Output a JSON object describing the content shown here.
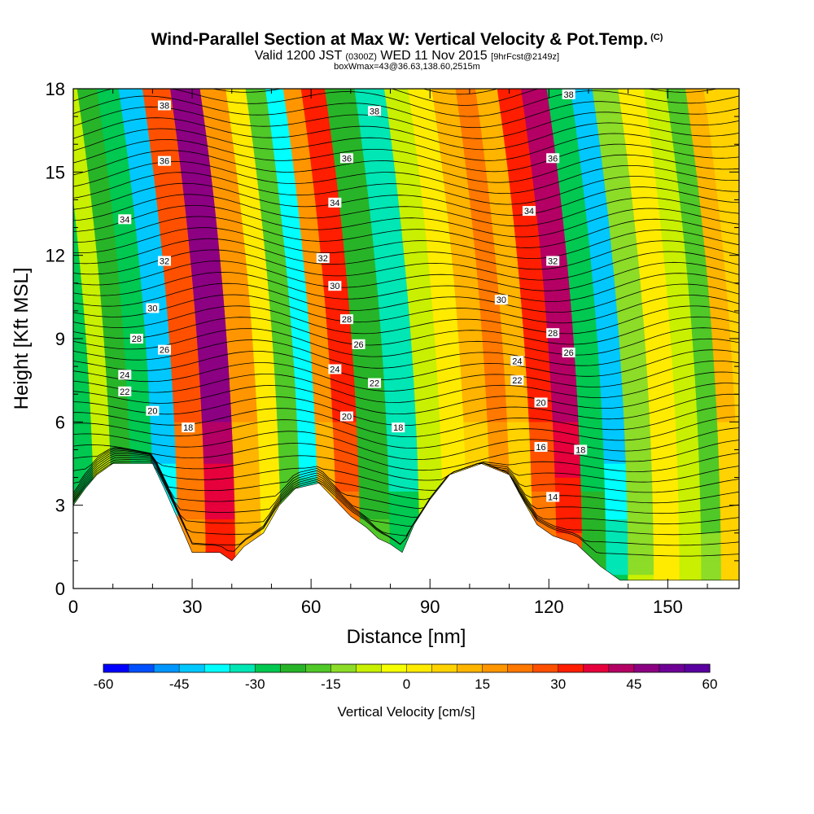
{
  "header": {
    "title": "Wind-Parallel Section at Max W: Vertical Velocity & Pot.Temp.",
    "copyright": "(C)",
    "valid_prefix": "Valid 1200 JST",
    "valid_zulu": "(0300Z)",
    "valid_date": "WED 11 Nov 2015",
    "valid_suffix": "[9hrFcst@2149z]",
    "box_line": "boxWmax=43@36.63,138.60,2515m"
  },
  "chart_data": {
    "type": "heatmap",
    "xlabel": "Distance [nm]",
    "ylabel": "Height [Kft MSL]",
    "xlim": [
      0,
      168
    ],
    "ylim": [
      0,
      18
    ],
    "x_ticks": [
      0,
      30,
      60,
      90,
      120,
      150
    ],
    "y_ticks": [
      0,
      3,
      6,
      9,
      12,
      15,
      18
    ],
    "x_tick_labels": [
      "0",
      "30",
      "60",
      "90",
      "120",
      "150"
    ],
    "y_tick_labels": [
      "0",
      "3",
      "6",
      "9",
      "12",
      "15",
      "18"
    ],
    "colorbar": {
      "label": "Vertical Velocity [cm/s]",
      "tick_values": [
        -60,
        -45,
        -30,
        -15,
        0,
        15,
        30,
        45,
        60
      ],
      "tick_labels": [
        "-60",
        "-45",
        "-30",
        "-15",
        "0",
        "15",
        "30",
        "45",
        "60"
      ],
      "colors": [
        "#0000ff",
        "#0050ff",
        "#0096ff",
        "#00c8ff",
        "#00ffff",
        "#00e6b4",
        "#00c850",
        "#28b428",
        "#50c828",
        "#8cdc28",
        "#c8f000",
        "#f5ff00",
        "#ffeb00",
        "#ffd200",
        "#ffb400",
        "#ff9600",
        "#ff7800",
        "#ff5000",
        "#ff1e00",
        "#e6003c",
        "#b40064",
        "#8c0082",
        "#6e0096",
        "#5a00a0"
      ]
    },
    "vertical_velocity_bands": [
      {
        "x": 3,
        "w": -30
      },
      {
        "x": 8,
        "w": -10
      },
      {
        "x": 12,
        "w": -25
      },
      {
        "x": 18,
        "w": -30
      },
      {
        "x": 23,
        "w": -45
      },
      {
        "x": 30,
        "w": 25
      },
      {
        "x": 37,
        "w": 45
      },
      {
        "x": 45,
        "w": 15
      },
      {
        "x": 50,
        "w": 0
      },
      {
        "x": 55,
        "w": -20
      },
      {
        "x": 60,
        "w": -40
      },
      {
        "x": 64,
        "w": 15
      },
      {
        "x": 69,
        "w": 30
      },
      {
        "x": 76,
        "w": -25
      },
      {
        "x": 84,
        "w": -35
      },
      {
        "x": 91,
        "w": -10
      },
      {
        "x": 96,
        "w": 0
      },
      {
        "x": 103,
        "w": 10
      },
      {
        "x": 108,
        "w": 20
      },
      {
        "x": 113,
        "w": 10
      },
      {
        "x": 119,
        "w": 30
      },
      {
        "x": 125,
        "w": 40
      },
      {
        "x": 132,
        "w": -30
      },
      {
        "x": 137,
        "w": -45
      },
      {
        "x": 143,
        "w": -15
      },
      {
        "x": 150,
        "w": 0
      },
      {
        "x": 156,
        "w": -10
      },
      {
        "x": 161,
        "w": -20
      },
      {
        "x": 166,
        "w": 10
      }
    ],
    "theta_contour_labels": [
      {
        "x": 23,
        "y": 17.4,
        "text": "38"
      },
      {
        "x": 76,
        "y": 17.2,
        "text": "38"
      },
      {
        "x": 125,
        "y": 17.8,
        "text": "38"
      },
      {
        "x": 23,
        "y": 15.4,
        "text": "36"
      },
      {
        "x": 69,
        "y": 15.5,
        "text": "36"
      },
      {
        "x": 121,
        "y": 15.5,
        "text": "36"
      },
      {
        "x": 13,
        "y": 13.3,
        "text": "34"
      },
      {
        "x": 66,
        "y": 13.9,
        "text": "34"
      },
      {
        "x": 115,
        "y": 13.6,
        "text": "34"
      },
      {
        "x": 23,
        "y": 11.8,
        "text": "32"
      },
      {
        "x": 63,
        "y": 11.9,
        "text": "32"
      },
      {
        "x": 121,
        "y": 11.8,
        "text": "32"
      },
      {
        "x": 20,
        "y": 10.1,
        "text": "30"
      },
      {
        "x": 66,
        "y": 10.9,
        "text": "30"
      },
      {
        "x": 108,
        "y": 10.4,
        "text": "30"
      },
      {
        "x": 16,
        "y": 9.0,
        "text": "28"
      },
      {
        "x": 69,
        "y": 9.7,
        "text": "28"
      },
      {
        "x": 121,
        "y": 9.2,
        "text": "28"
      },
      {
        "x": 23,
        "y": 8.6,
        "text": "26"
      },
      {
        "x": 72,
        "y": 8.8,
        "text": "26"
      },
      {
        "x": 125,
        "y": 8.5,
        "text": "26"
      },
      {
        "x": 13,
        "y": 7.7,
        "text": "24"
      },
      {
        "x": 66,
        "y": 7.9,
        "text": "24"
      },
      {
        "x": 112,
        "y": 8.2,
        "text": "24"
      },
      {
        "x": 13,
        "y": 7.1,
        "text": "22"
      },
      {
        "x": 76,
        "y": 7.4,
        "text": "22"
      },
      {
        "x": 112,
        "y": 7.5,
        "text": "22"
      },
      {
        "x": 20,
        "y": 6.4,
        "text": "20"
      },
      {
        "x": 69,
        "y": 6.2,
        "text": "20"
      },
      {
        "x": 118,
        "y": 6.7,
        "text": "20"
      },
      {
        "x": 29,
        "y": 5.8,
        "text": "18"
      },
      {
        "x": 82,
        "y": 5.8,
        "text": "18"
      },
      {
        "x": 128,
        "y": 5.0,
        "text": "18"
      },
      {
        "x": 118,
        "y": 5.1,
        "text": "16"
      },
      {
        "x": 121,
        "y": 3.3,
        "text": "14"
      }
    ],
    "terrain_top": [
      {
        "x": 0,
        "y": 3.0
      },
      {
        "x": 3,
        "y": 3.6
      },
      {
        "x": 6,
        "y": 4.1
      },
      {
        "x": 10,
        "y": 4.5
      },
      {
        "x": 20,
        "y": 4.5
      },
      {
        "x": 23,
        "y": 3.6
      },
      {
        "x": 27,
        "y": 2.3
      },
      {
        "x": 30,
        "y": 1.3
      },
      {
        "x": 37,
        "y": 1.3
      },
      {
        "x": 40,
        "y": 1.0
      },
      {
        "x": 43,
        "y": 1.5
      },
      {
        "x": 48,
        "y": 2.0
      },
      {
        "x": 52,
        "y": 3.0
      },
      {
        "x": 56,
        "y": 3.6
      },
      {
        "x": 62,
        "y": 3.8
      },
      {
        "x": 66,
        "y": 3.2
      },
      {
        "x": 70,
        "y": 2.6
      },
      {
        "x": 74,
        "y": 2.2
      },
      {
        "x": 77,
        "y": 1.8
      },
      {
        "x": 80,
        "y": 1.6
      },
      {
        "x": 83,
        "y": 1.3
      },
      {
        "x": 86,
        "y": 2.3
      },
      {
        "x": 90,
        "y": 3.2
      },
      {
        "x": 95,
        "y": 4.1
      },
      {
        "x": 103,
        "y": 4.5
      },
      {
        "x": 110,
        "y": 4.1
      },
      {
        "x": 113,
        "y": 3.3
      },
      {
        "x": 117,
        "y": 2.3
      },
      {
        "x": 121,
        "y": 1.9
      },
      {
        "x": 127,
        "y": 1.6
      },
      {
        "x": 130,
        "y": 1.2
      },
      {
        "x": 133,
        "y": 0.8
      },
      {
        "x": 138,
        "y": 0.3
      },
      {
        "x": 168,
        "y": 0.3
      }
    ]
  }
}
